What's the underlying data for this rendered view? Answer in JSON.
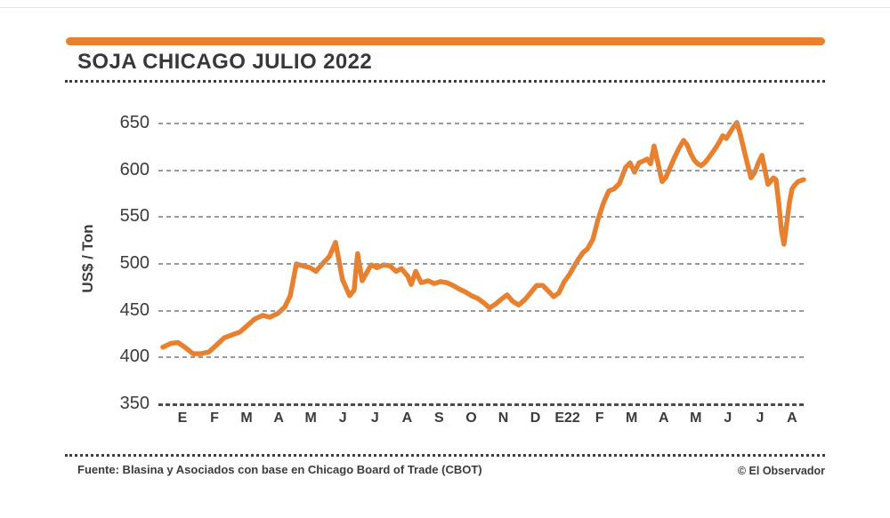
{
  "header": {
    "title": "SOJA CHICAGO JULIO 2022"
  },
  "footer": {
    "source": "Fuente: Blasina y Asociados con base en Chicago Board of Trade (CBOT)",
    "credit": "© El Observador"
  },
  "colors": {
    "accent_orange": "#E8812F",
    "text_dark": "#3B3B3B",
    "grid_gray": "#9A9A9A",
    "baseline_gray": "#4D4D4D"
  },
  "chart_data": {
    "type": "line",
    "title": "SOJA CHICAGO JULIO 2022",
    "xlabel": "",
    "ylabel": "US$ / Ton",
    "ylim": [
      350,
      650
    ],
    "y_ticks": [
      350,
      400,
      450,
      500,
      550,
      600,
      650
    ],
    "x_tick_labels": [
      "E",
      "F",
      "M",
      "A",
      "M",
      "J",
      "J",
      "A",
      "S",
      "O",
      "N",
      "D",
      "E22",
      "F",
      "M",
      "A",
      "M",
      "J",
      "J",
      "A"
    ],
    "grid": "horizontal-dashed",
    "legend": "none",
    "series": [
      {
        "name": "Soja Chicago Julio 2022",
        "units": "US$/Ton",
        "points": [
          [
            -0.61,
            411
          ],
          [
            -0.36,
            415
          ],
          [
            -0.14,
            416
          ],
          [
            0.11,
            410
          ],
          [
            0.33,
            404
          ],
          [
            0.58,
            404
          ],
          [
            0.83,
            406
          ],
          [
            1.05,
            413
          ],
          [
            1.3,
            421
          ],
          [
            1.53,
            424
          ],
          [
            1.78,
            427
          ],
          [
            2.02,
            434
          ],
          [
            2.25,
            441
          ],
          [
            2.5,
            445
          ],
          [
            2.72,
            443
          ],
          [
            2.97,
            447
          ],
          [
            3.19,
            454
          ],
          [
            3.36,
            466
          ],
          [
            3.55,
            500
          ],
          [
            3.74,
            498
          ],
          [
            3.97,
            496
          ],
          [
            4.16,
            492
          ],
          [
            4.36,
            500
          ],
          [
            4.58,
            508
          ],
          [
            4.77,
            523
          ],
          [
            4.99,
            483
          ],
          [
            5.21,
            466
          ],
          [
            5.35,
            472
          ],
          [
            5.46,
            511
          ],
          [
            5.6,
            482
          ],
          [
            5.88,
            499
          ],
          [
            6.07,
            496
          ],
          [
            6.27,
            499
          ],
          [
            6.46,
            498
          ],
          [
            6.66,
            492
          ],
          [
            6.82,
            495
          ],
          [
            7.02,
            487
          ],
          [
            7.13,
            478
          ],
          [
            7.27,
            492
          ],
          [
            7.44,
            480
          ],
          [
            7.66,
            482
          ],
          [
            7.85,
            479
          ],
          [
            8.04,
            481
          ],
          [
            8.24,
            480
          ],
          [
            8.43,
            477
          ],
          [
            8.63,
            473
          ],
          [
            8.82,
            470
          ],
          [
            9.01,
            466
          ],
          [
            9.21,
            463
          ],
          [
            9.4,
            458
          ],
          [
            9.57,
            453
          ],
          [
            9.76,
            457
          ],
          [
            9.93,
            462
          ],
          [
            10.12,
            467
          ],
          [
            10.29,
            460
          ],
          [
            10.48,
            456
          ],
          [
            10.68,
            462
          ],
          [
            10.87,
            470
          ],
          [
            11.04,
            477
          ],
          [
            11.23,
            477
          ],
          [
            11.4,
            471
          ],
          [
            11.57,
            465
          ],
          [
            11.73,
            469
          ],
          [
            11.9,
            481
          ],
          [
            12.07,
            489
          ],
          [
            12.2,
            497
          ],
          [
            12.34,
            505
          ],
          [
            12.48,
            512
          ],
          [
            12.62,
            516
          ],
          [
            12.79,
            526
          ],
          [
            12.95,
            547
          ],
          [
            13.12,
            565
          ],
          [
            13.29,
            578
          ],
          [
            13.45,
            580
          ],
          [
            13.62,
            586
          ],
          [
            13.81,
            603
          ],
          [
            13.95,
            608
          ],
          [
            14.09,
            598
          ],
          [
            14.23,
            608
          ],
          [
            14.37,
            610
          ],
          [
            14.48,
            612
          ],
          [
            14.59,
            607
          ],
          [
            14.7,
            626
          ],
          [
            14.87,
            600
          ],
          [
            14.95,
            588
          ],
          [
            15.06,
            592
          ],
          [
            15.2,
            603
          ],
          [
            15.34,
            614
          ],
          [
            15.48,
            624
          ],
          [
            15.62,
            632
          ],
          [
            15.73,
            627
          ],
          [
            15.84,
            618
          ],
          [
            15.95,
            611
          ],
          [
            16.06,
            607
          ],
          [
            16.17,
            605
          ],
          [
            16.28,
            608
          ],
          [
            16.39,
            613
          ],
          [
            16.5,
            618
          ],
          [
            16.62,
            624
          ],
          [
            16.73,
            630
          ],
          [
            16.84,
            637
          ],
          [
            16.95,
            634
          ],
          [
            17.06,
            640
          ],
          [
            17.17,
            646
          ],
          [
            17.28,
            651
          ],
          [
            17.39,
            638
          ],
          [
            17.5,
            622
          ],
          [
            17.61,
            607
          ],
          [
            17.72,
            592
          ],
          [
            17.84,
            598
          ],
          [
            17.95,
            608
          ],
          [
            18.06,
            616
          ],
          [
            18.17,
            598
          ],
          [
            18.25,
            585
          ],
          [
            18.33,
            588
          ],
          [
            18.42,
            592
          ],
          [
            18.5,
            590
          ],
          [
            18.59,
            563
          ],
          [
            18.67,
            535
          ],
          [
            18.75,
            521
          ],
          [
            18.83,
            542
          ],
          [
            18.92,
            566
          ],
          [
            19.0,
            580
          ],
          [
            19.08,
            584
          ],
          [
            19.19,
            588
          ],
          [
            19.36,
            590
          ]
        ]
      }
    ]
  }
}
